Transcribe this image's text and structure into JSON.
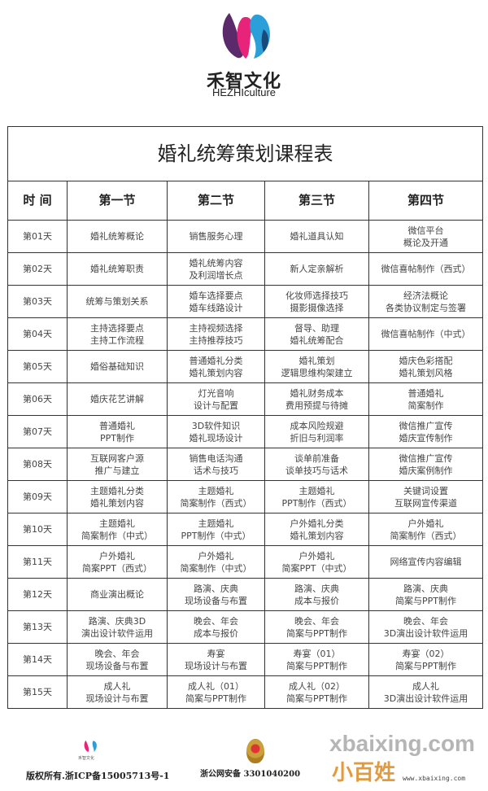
{
  "brand": {
    "name_cn": "禾智文化",
    "name_en": "HEZHIculture",
    "colors": {
      "pink": "#e8247a",
      "blue": "#2a9fd8",
      "purple": "#5a2a6a"
    }
  },
  "table": {
    "title": "婚礼统筹策划课程表",
    "headers": [
      "时 间",
      "第一节",
      "第二节",
      "第三节",
      "第四节"
    ],
    "rows": [
      {
        "day": "第01天",
        "c": [
          [
            "婚礼统筹概论"
          ],
          [
            "销售服务心理"
          ],
          [
            "婚礼道具认知"
          ],
          [
            "微信平台",
            "概论及开通"
          ]
        ]
      },
      {
        "day": "第02天",
        "c": [
          [
            "婚礼统筹职责"
          ],
          [
            "婚礼统筹内容",
            "及利润增长点"
          ],
          [
            "新人定亲解析"
          ],
          [
            "微信喜帖制作（西式）"
          ]
        ]
      },
      {
        "day": "第03天",
        "c": [
          [
            "统筹与策划关系"
          ],
          [
            "婚车选择要点",
            "婚车线路设计"
          ],
          [
            "化妆师选择技巧",
            "摄影摄像选择"
          ],
          [
            "经济法概论",
            "各类协议制定与签署"
          ]
        ]
      },
      {
        "day": "第04天",
        "c": [
          [
            "主持选择要点",
            "主持工作流程"
          ],
          [
            "主持视频选择",
            "主持推荐技巧"
          ],
          [
            "督导、助理",
            "婚礼统筹配合"
          ],
          [
            "微信喜帖制作（中式）"
          ]
        ]
      },
      {
        "day": "第05天",
        "c": [
          [
            "婚俗基础知识"
          ],
          [
            "普通婚礼分类",
            "婚礼策划内容"
          ],
          [
            "婚礼策划",
            "逻辑思维构架建立"
          ],
          [
            "婚庆色彩搭配",
            "婚礼策划风格"
          ]
        ]
      },
      {
        "day": "第06天",
        "c": [
          [
            "婚庆花艺讲解"
          ],
          [
            "灯光音响",
            "设计与配置"
          ],
          [
            "婚礼财务成本",
            "费用预提与待摊"
          ],
          [
            "普通婚礼",
            "简案制作"
          ]
        ]
      },
      {
        "day": "第07天",
        "c": [
          [
            "普通婚礼",
            "PPT制作"
          ],
          [
            "3D软件知识",
            "婚礼现场设计"
          ],
          [
            "成本风险规避",
            "折旧与利润率"
          ],
          [
            "微信推广宣传",
            "婚庆宣传制作"
          ]
        ]
      },
      {
        "day": "第08天",
        "c": [
          [
            "互联网客户源",
            "推广与建立"
          ],
          [
            "销售电话沟通",
            "话术与技巧"
          ],
          [
            "谈单前准备",
            "谈单技巧与话术"
          ],
          [
            "微信推广宣传",
            "婚庆案例制作"
          ]
        ]
      },
      {
        "day": "第09天",
        "c": [
          [
            "主题婚礼分类",
            "婚礼策划内容"
          ],
          [
            "主题婚礼",
            "简案制作（西式）"
          ],
          [
            "主题婚礼",
            "PPT制作（西式）"
          ],
          [
            "关键词设置",
            "互联网宣传渠道"
          ]
        ]
      },
      {
        "day": "第10天",
        "c": [
          [
            "主题婚礼",
            "简案制作（中式）"
          ],
          [
            "主题婚礼",
            "PPT制作（中式）"
          ],
          [
            "户外婚礼分类",
            "婚礼策划内容"
          ],
          [
            "户外婚礼",
            "简案制作（西式）"
          ]
        ]
      },
      {
        "day": "第11天",
        "c": [
          [
            "户外婚礼",
            "简案PPT（西式）"
          ],
          [
            "户外婚礼",
            "简案制作（中式）"
          ],
          [
            "户外婚礼",
            "简案PPT（中式）"
          ],
          [
            "网络宣传内容编辑"
          ]
        ]
      },
      {
        "day": "第12天",
        "c": [
          [
            "商业演出概论"
          ],
          [
            "路演、庆典",
            "现场设备与布置"
          ],
          [
            "路演、庆典",
            "成本与报价"
          ],
          [
            "路演、庆典",
            "简案与PPT制作"
          ]
        ]
      },
      {
        "day": "第13天",
        "c": [
          [
            "路演、庆典3D",
            "演出设计软件运用"
          ],
          [
            "晚会、年会",
            "成本与报价"
          ],
          [
            "晚会、年会",
            "简案与PPT制作"
          ],
          [
            "晚会、年会",
            "3D演出设计软件运用"
          ]
        ]
      },
      {
        "day": "第14天",
        "c": [
          [
            "晚会、年会",
            "现场设备与布置"
          ],
          [
            "寿宴",
            "现场设计与布置"
          ],
          [
            "寿宴（01）",
            "简案与PPT制作"
          ],
          [
            "寿宴（02）",
            "简案与PPT制作"
          ]
        ]
      },
      {
        "day": "第15天",
        "c": [
          [
            "成人礼",
            "现场设计与布置"
          ],
          [
            "成人礼（01）",
            "简案与PPT制作"
          ],
          [
            "成人礼（02）",
            "简案与PPT制作"
          ],
          [
            "成人礼",
            "3D演出设计软件运用"
          ]
        ]
      }
    ]
  },
  "footer": {
    "logo_text": "禾智文化",
    "icp": "版权所有.浙ICP备15005713号-1",
    "beian": "浙公网安备 3301040200",
    "watermark": "xbaixing.com",
    "watermark_cn": "小百姓",
    "watermark_url": "www.xbaixing.com"
  }
}
